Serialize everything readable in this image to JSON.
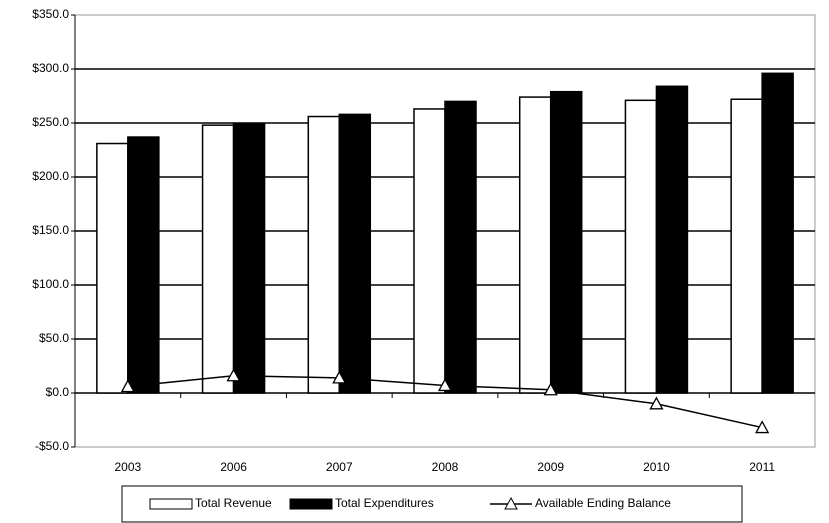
{
  "chart_data": {
    "type": "bar",
    "categories": [
      "2003",
      "2006",
      "2007",
      "2008",
      "2009",
      "2010",
      "2011"
    ],
    "series": [
      {
        "name": "Total Revenue",
        "type": "bar",
        "color": "#ffffff",
        "values": [
          231,
          248,
          256,
          263,
          274,
          271,
          272
        ]
      },
      {
        "name": "Total Expenditures",
        "type": "bar",
        "color": "#000000",
        "values": [
          237,
          249,
          258,
          270,
          279,
          284,
          296
        ]
      },
      {
        "name": "Available Ending Balance",
        "type": "line",
        "color": "#000000",
        "values": [
          6,
          16,
          14,
          7,
          3,
          -10,
          -32
        ]
      }
    ],
    "ylim": [
      -50,
      350
    ],
    "yticks": [
      {
        "value": -50,
        "label": "-$50.0"
      },
      {
        "value": 0,
        "label": "$0.0"
      },
      {
        "value": 50,
        "label": "$50.0"
      },
      {
        "value": 100,
        "label": "$100.0"
      },
      {
        "value": 150,
        "label": "$150.0"
      },
      {
        "value": 200,
        "label": "$200.0"
      },
      {
        "value": 250,
        "label": "$250.0"
      },
      {
        "value": 300,
        "label": "$300.0"
      },
      {
        "value": 350,
        "label": "$350.0"
      }
    ],
    "grid": true,
    "legend": "bottom"
  }
}
